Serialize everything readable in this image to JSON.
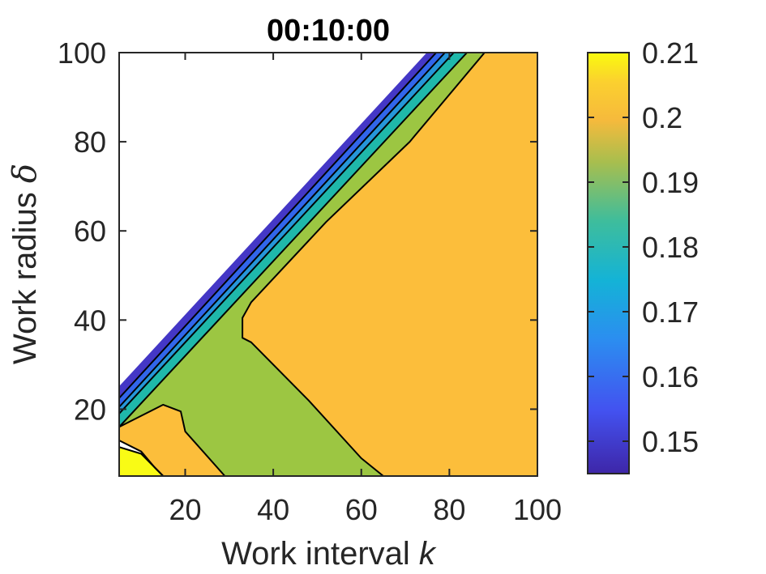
{
  "chart_data": {
    "type": "contour",
    "title": "00:10:00",
    "xlabel": "Work interval k",
    "xlabel_parts": {
      "text": "Work interval ",
      "italic": "k"
    },
    "ylabel": "Work radius δ",
    "ylabel_parts": {
      "text": "Work radius ",
      "italic": "δ"
    },
    "xlim": [
      5,
      100
    ],
    "ylim": [
      5,
      100
    ],
    "xticks": [
      20,
      40,
      60,
      80,
      100
    ],
    "yticks": [
      20,
      40,
      60,
      80,
      100
    ],
    "grid": false,
    "colorbar": {
      "location": "right",
      "range": [
        0.145,
        0.21
      ],
      "ticks": [
        "0.15",
        "0.16",
        "0.17",
        "0.18",
        "0.19",
        "0.2",
        "0.21"
      ],
      "tick_values": [
        0.15,
        0.16,
        0.17,
        0.18,
        0.19,
        0.2,
        0.21
      ],
      "colormap": "parula"
    },
    "regions": [
      {
        "level": 0.15,
        "color": "#4437c6",
        "polygon": [
          [
            5,
            22.5
          ],
          [
            5,
            25
          ],
          [
            75,
            100
          ],
          [
            77,
            100
          ]
        ]
      },
      {
        "level": 0.16,
        "color": "#3166eb",
        "polygon": [
          [
            5,
            20.5
          ],
          [
            5,
            22.5
          ],
          [
            77,
            100
          ],
          [
            79,
            100
          ]
        ]
      },
      {
        "level": 0.17,
        "color": "#2696d9",
        "polygon": [
          [
            5,
            19
          ],
          [
            5,
            20.5
          ],
          [
            79,
            100
          ],
          [
            81,
            100
          ]
        ]
      },
      {
        "level": 0.18,
        "color": "#1fb8aa",
        "polygon": [
          [
            5,
            16
          ],
          [
            5,
            19
          ],
          [
            81,
            100
          ],
          [
            84,
            100
          ]
        ]
      },
      {
        "level": 0.19,
        "color": "#9cc642",
        "polygon": [
          [
            5,
            16
          ],
          [
            5,
            13
          ],
          [
            10,
            10.5
          ],
          [
            13,
            7
          ],
          [
            15,
            5
          ],
          [
            29,
            5
          ],
          [
            20,
            15
          ],
          [
            19,
            19.5
          ],
          [
            15,
            21
          ],
          [
            5,
            16
          ],
          [
            84,
            100
          ],
          [
            88,
            100
          ],
          [
            71,
            80
          ],
          [
            52,
            62
          ],
          [
            35,
            44
          ],
          [
            33,
            40.5
          ],
          [
            33,
            36
          ],
          [
            35,
            35
          ],
          [
            48,
            22
          ],
          [
            60,
            9
          ],
          [
            65,
            5
          ],
          [
            29,
            5
          ],
          [
            20,
            15
          ],
          [
            19,
            19.5
          ],
          [
            15,
            21
          ]
        ]
      },
      {
        "level": 0.2,
        "color": "#fcbe3b",
        "polygon": [
          [
            5,
            16
          ],
          [
            15,
            21
          ],
          [
            19,
            19.5
          ],
          [
            20,
            15
          ],
          [
            29,
            5
          ],
          [
            15,
            5
          ],
          [
            13,
            7
          ],
          [
            10,
            10.5
          ],
          [
            5,
            13
          ]
        ]
      },
      {
        "level": 0.2,
        "color": "#fcbe3b",
        "polygon": [
          [
            88,
            100
          ],
          [
            100,
            100
          ],
          [
            100,
            5
          ],
          [
            65,
            5
          ],
          [
            60,
            9
          ],
          [
            48,
            22
          ],
          [
            35,
            35
          ],
          [
            33,
            36
          ],
          [
            33,
            40.5
          ],
          [
            35,
            44
          ],
          [
            52,
            62
          ],
          [
            71,
            80
          ]
        ]
      },
      {
        "level": 0.21,
        "color": "#f9fb15",
        "polygon": [
          [
            5,
            5
          ],
          [
            5,
            11.5
          ],
          [
            10,
            10
          ],
          [
            15,
            5
          ]
        ]
      }
    ],
    "contour_lines": [
      [
        [
          5,
          22.5
        ],
        [
          77,
          100
        ]
      ],
      [
        [
          5,
          20.5
        ],
        [
          79,
          100
        ]
      ],
      [
        [
          5,
          19
        ],
        [
          81,
          100
        ]
      ],
      [
        [
          5,
          16
        ],
        [
          84,
          100
        ]
      ],
      [
        [
          5,
          16
        ],
        [
          15,
          21
        ],
        [
          19,
          19.5
        ],
        [
          20,
          15
        ],
        [
          29,
          5
        ]
      ],
      [
        [
          88,
          100
        ],
        [
          71,
          80
        ],
        [
          52,
          62
        ],
        [
          35,
          44
        ],
        [
          33,
          40.5
        ],
        [
          33,
          36
        ],
        [
          35,
          35
        ],
        [
          48,
          22
        ],
        [
          60,
          9
        ],
        [
          65,
          5
        ]
      ],
      [
        [
          5,
          13
        ],
        [
          10,
          10.5
        ],
        [
          13,
          7
        ],
        [
          15,
          5
        ]
      ],
      [
        [
          5,
          11.5
        ],
        [
          10,
          10
        ],
        [
          15,
          5
        ]
      ]
    ]
  }
}
